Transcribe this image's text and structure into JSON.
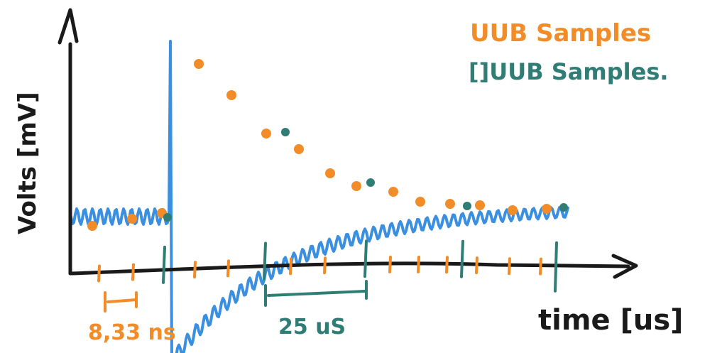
{
  "colors": {
    "axis": "#1a1a1a",
    "signal": "#3b8fe0",
    "ub": "#f28c28",
    "uub": "#2f7d74",
    "background": "#ffffff"
  },
  "legend": {
    "ub_samples": "UUB Samples",
    "uub_samples": "[]UUB Samples."
  },
  "axes": {
    "ylabel": "Volts [mV]",
    "xlabel": "time [us]"
  },
  "annotations": {
    "ub_interval": "8,33 ns",
    "uub_interval": "25 uS"
  }
}
